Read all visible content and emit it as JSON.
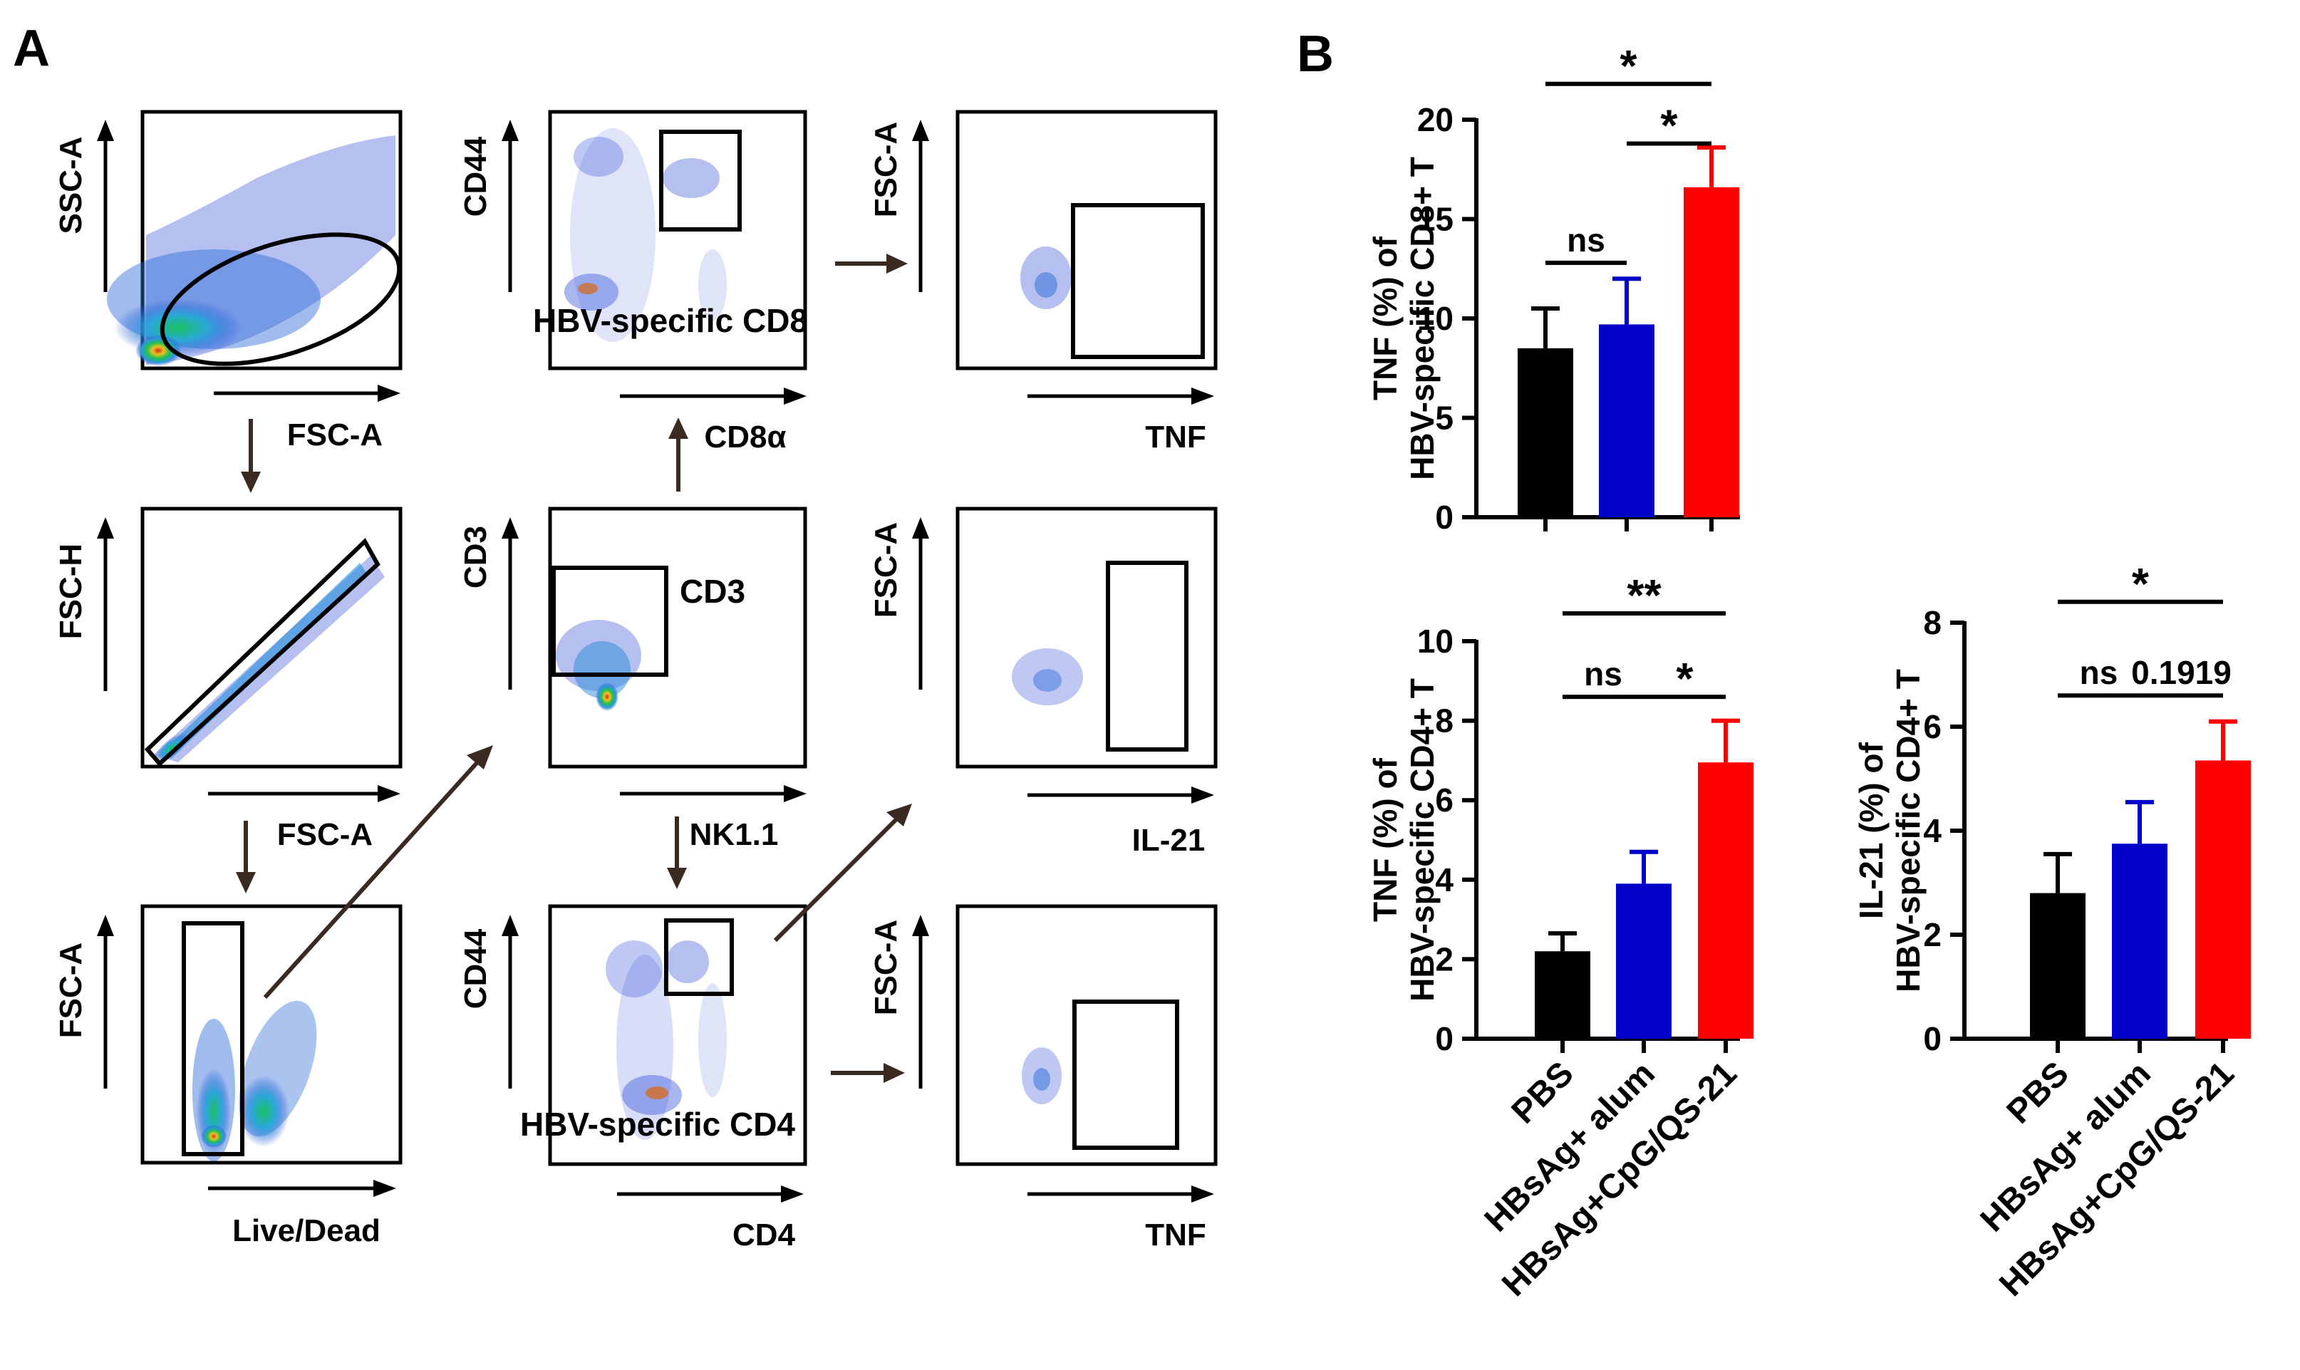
{
  "panel_labels": {
    "a": "A",
    "b": "B"
  },
  "colors": {
    "pbs": "#000000",
    "alum": "#0000c8",
    "cpg": "#ff0000",
    "arrow": "#3a2a22",
    "axis": "#000000"
  },
  "flow": {
    "plots": [
      {
        "id": "ssc_fsc",
        "ylabel": "SSC-A",
        "xlabel": "FSC-A",
        "note": ""
      },
      {
        "id": "fsch_fsca",
        "ylabel": "FSC-H",
        "xlabel": "FSC-A",
        "note": ""
      },
      {
        "id": "fsc_live",
        "ylabel": "FSC-A",
        "xlabel": "Live/Dead",
        "note": ""
      },
      {
        "id": "cd44_cd8",
        "ylabel": "CD44",
        "xlabel": "CD8α",
        "note": "HBV-specific CD8"
      },
      {
        "id": "cd3_nk",
        "ylabel": "CD3",
        "xlabel": "NK1.1",
        "note": "CD3"
      },
      {
        "id": "cd44_cd4",
        "ylabel": "CD44",
        "xlabel": "CD4",
        "note": "HBV-specific CD4"
      },
      {
        "id": "fsc_tnf_cd8",
        "ylabel": "FSC-A",
        "xlabel": "TNF",
        "note": ""
      },
      {
        "id": "fsc_il21",
        "ylabel": "FSC-A",
        "xlabel": "IL-21",
        "note": ""
      },
      {
        "id": "fsc_tnf_cd4",
        "ylabel": "FSC-A",
        "xlabel": "TNF",
        "note": ""
      }
    ]
  },
  "chart_data": [
    {
      "id": "tnf_cd8",
      "type": "bar",
      "ylabel_line1": "TNF (%) of",
      "ylabel_line2": "HBV-specific CD8+ T",
      "categories": [
        "PBS",
        "HBsAg+ alum",
        "HBsAg+CpG/QS-21"
      ],
      "values": [
        8.5,
        9.7,
        16.6
      ],
      "errors": [
        2.0,
        2.3,
        2.0
      ],
      "colors": [
        "#000000",
        "#0000c8",
        "#ff0000"
      ],
      "ylim": [
        0,
        20
      ],
      "yticks": [
        0,
        5,
        10,
        15,
        20
      ],
      "ytick_labels": [
        "0",
        "5",
        "10",
        "15",
        "20"
      ],
      "show_xlabels": false,
      "annotations": [
        {
          "from": 0,
          "to": 1,
          "level": 12.8,
          "text": "ns"
        },
        {
          "from": 1,
          "to": 2,
          "level": 18.8,
          "text": "*"
        },
        {
          "from": 0,
          "to": 2,
          "level": 21.8,
          "text": "*"
        }
      ]
    },
    {
      "id": "tnf_cd4",
      "type": "bar",
      "ylabel_line1": "TNF (%) of",
      "ylabel_line2": "HBV-specific CD4+ T",
      "categories": [
        "PBS",
        "HBsAg+ alum",
        "HBsAg+CpG/QS-21"
      ],
      "values": [
        2.2,
        3.9,
        6.95
      ],
      "errors": [
        0.45,
        0.8,
        1.05
      ],
      "colors": [
        "#000000",
        "#0000c8",
        "#ff0000"
      ],
      "ylim": [
        0,
        10
      ],
      "yticks": [
        0,
        2,
        4,
        6,
        8,
        10
      ],
      "ytick_labels": [
        "0",
        "2",
        "4",
        "6",
        "8",
        "10"
      ],
      "show_xlabels": true,
      "annotations": [
        {
          "from": 0,
          "to": 1,
          "level": 8.6,
          "text": "ns"
        },
        {
          "from": 1,
          "to": 2,
          "level": 8.6,
          "text": "*"
        },
        {
          "from": 0,
          "to": 2,
          "level": 10.7,
          "text": "**"
        }
      ]
    },
    {
      "id": "il21_cd4",
      "type": "bar",
      "ylabel_line1": "IL-21 (%) of",
      "ylabel_line2": "HBV-specific CD4+ T",
      "categories": [
        "PBS",
        "HBsAg+ alum",
        "HBsAg+CpG/QS-21"
      ],
      "values": [
        2.8,
        3.75,
        5.35
      ],
      "errors": [
        0.75,
        0.8,
        0.75
      ],
      "colors": [
        "#000000",
        "#0000c8",
        "#ff0000"
      ],
      "ylim": [
        0,
        8
      ],
      "yticks": [
        0,
        2,
        4,
        6,
        8
      ],
      "ytick_labels": [
        "0",
        "2",
        "4",
        "6",
        "8"
      ],
      "show_xlabels": true,
      "annotations": [
        {
          "from": 0,
          "to": 1,
          "level": 6.6,
          "text": "ns"
        },
        {
          "from": 1,
          "to": 2,
          "level": 6.6,
          "text": "0.1919"
        },
        {
          "from": 0,
          "to": 2,
          "level": 8.4,
          "text": "*"
        }
      ]
    }
  ]
}
